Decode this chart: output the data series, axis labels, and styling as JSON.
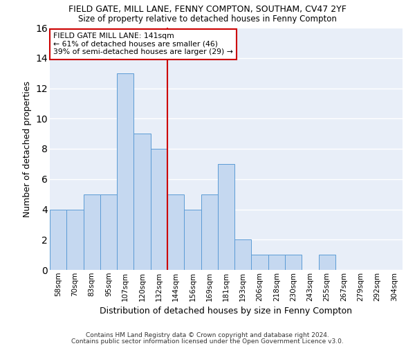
{
  "title1": "FIELD GATE, MILL LANE, FENNY COMPTON, SOUTHAM, CV47 2YF",
  "title2": "Size of property relative to detached houses in Fenny Compton",
  "xlabel": "Distribution of detached houses by size in Fenny Compton",
  "ylabel": "Number of detached properties",
  "categories": [
    "58sqm",
    "70sqm",
    "83sqm",
    "95sqm",
    "107sqm",
    "120sqm",
    "132sqm",
    "144sqm",
    "156sqm",
    "169sqm",
    "181sqm",
    "193sqm",
    "206sqm",
    "218sqm",
    "230sqm",
    "243sqm",
    "255sqm",
    "267sqm",
    "279sqm",
    "292sqm",
    "304sqm"
  ],
  "values": [
    4,
    4,
    5,
    5,
    13,
    9,
    8,
    5,
    4,
    5,
    7,
    2,
    1,
    1,
    1,
    0,
    1,
    0,
    0,
    0,
    0
  ],
  "bar_color": "#c5d8f0",
  "bar_edge_color": "#5b9bd5",
  "ref_line_color": "#cc0000",
  "ref_line_index": 6.5,
  "annotation_line1": "FIELD GATE MILL LANE: 141sqm",
  "annotation_line2": "← 61% of detached houses are smaller (46)",
  "annotation_line3": "39% of semi-detached houses are larger (29) →",
  "annotation_box_color": "#cc0000",
  "ylim": [
    0,
    16
  ],
  "yticks": [
    0,
    2,
    4,
    6,
    8,
    10,
    12,
    14,
    16
  ],
  "footnote1": "Contains HM Land Registry data © Crown copyright and database right 2024.",
  "footnote2": "Contains public sector information licensed under the Open Government Licence v3.0.",
  "bg_color": "#e8eef8",
  "grid_color": "#ffffff"
}
